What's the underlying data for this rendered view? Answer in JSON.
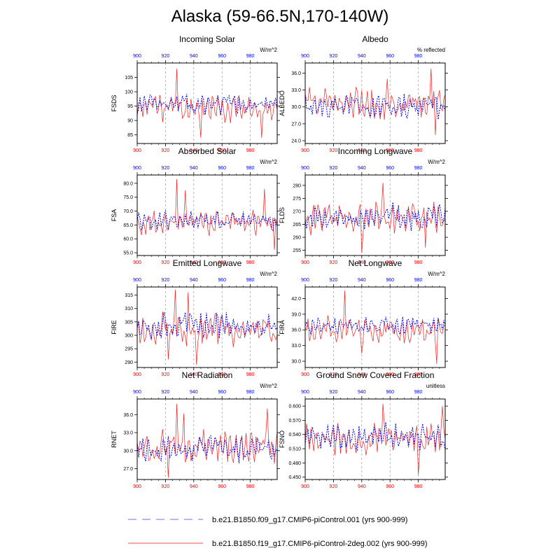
{
  "title": "Alaska (59-66.5N,170-140W)",
  "colors": {
    "run1": "#0000ee",
    "run2": "#ee2222",
    "top_ticks": "#0000ee",
    "bottom_ticks": "#ee0000",
    "dash_guides": "#999999"
  },
  "x_ticks": [
    "900",
    "920",
    "940",
    "960",
    "980"
  ],
  "x_tick_values": [
    900,
    920,
    940,
    960,
    980
  ],
  "xlim": [
    900,
    999
  ],
  "legend": [
    {
      "label": "b.e21.B1850.f09_g17.CMIP6-piControl.001 (yrs 900-999)",
      "color": "#8c8cf0",
      "style": "dashed"
    },
    {
      "label": "b.e21.B1850.f19_g17.CMIP6-piControl-2deg.002 (yrs 900-999)",
      "color": "#f07070",
      "style": "solid"
    }
  ],
  "chart_data": [
    {
      "type": "line",
      "title": "Incoming Solar",
      "ylabel": "FSDS",
      "units": "W/m^2",
      "ylim": [
        82,
        110
      ],
      "yticks": [
        85,
        90,
        95,
        100,
        105
      ],
      "ytick_labels": [
        "85",
        "90",
        "95",
        "100",
        "105"
      ],
      "mean": [
        95.5,
        94.0
      ],
      "amp": [
        3.0,
        4.0
      ],
      "seed": [
        11,
        12
      ],
      "spikes": [
        [
          28,
          108
        ],
        [
          45,
          84
        ],
        [
          88,
          84
        ]
      ]
    },
    {
      "type": "line",
      "title": "Albedo",
      "ylabel": "ALBEDO",
      "units": "% reflected",
      "ylim": [
        23.5,
        37.8
      ],
      "yticks": [
        24.0,
        27.0,
        30.0,
        33.0,
        36.0
      ],
      "ytick_labels": [
        "24.0",
        "27.0",
        "30.0",
        "33.0",
        "36.0"
      ],
      "mean": [
        30.0,
        30.5
      ],
      "amp": [
        2.0,
        2.4
      ],
      "seed": [
        21,
        22
      ],
      "spikes": [
        [
          58,
          35.0
        ],
        [
          89,
          36.8
        ],
        [
          92,
          25.0
        ]
      ]
    },
    {
      "type": "line",
      "title": "Absorbed Solar",
      "ylabel": "FSA",
      "units": "W/m^2",
      "ylim": [
        54,
        83
      ],
      "yticks": [
        55.0,
        60.0,
        65.0,
        70.0,
        75.0,
        80.0
      ],
      "ytick_labels": [
        "55.0",
        "60.0",
        "65.0",
        "70.0",
        "75.0",
        "80.0"
      ],
      "mean": [
        66.5,
        65.5
      ],
      "amp": [
        3.0,
        3.8
      ],
      "seed": [
        31,
        32
      ],
      "spikes": [
        [
          28,
          81.5
        ],
        [
          34,
          77.5
        ],
        [
          90,
          78.0
        ],
        [
          97,
          56.0
        ]
      ]
    },
    {
      "type": "line",
      "title": "Incoming Longwave",
      "ylabel": "FLDS",
      "units": "W/m^2",
      "ylim": [
        253,
        284
      ],
      "yticks": [
        255,
        260,
        265,
        270,
        275,
        280
      ],
      "ytick_labels": [
        "255",
        "260",
        "265",
        "270",
        "275",
        "280"
      ],
      "mean": [
        268.0,
        267.5
      ],
      "amp": [
        4.5,
        5.5
      ],
      "seed": [
        41,
        42
      ],
      "spikes": [
        [
          55,
          281
        ],
        [
          40,
          254
        ],
        [
          85,
          256
        ]
      ]
    },
    {
      "type": "line",
      "title": "Emitted Longwave",
      "ylabel": "FIRE",
      "units": "W/m^2",
      "ylim": [
        288,
        318
      ],
      "yticks": [
        290,
        295,
        300,
        305,
        310,
        315
      ],
      "ytick_labels": [
        "290",
        "295",
        "300",
        "305",
        "310",
        "315"
      ],
      "mean": [
        304.0,
        302.5
      ],
      "amp": [
        4.5,
        5.5
      ],
      "seed": [
        51,
        52
      ],
      "spikes": [
        [
          22,
          291
        ],
        [
          27,
          317
        ],
        [
          42,
          289
        ],
        [
          36,
          316
        ]
      ]
    },
    {
      "type": "line",
      "title": "Net Longwave",
      "ylabel": "FIRA",
      "units": "W/m^2",
      "ylim": [
        28.8,
        44.2
      ],
      "yticks": [
        30.0,
        33.0,
        36.0,
        39.0,
        42.0
      ],
      "ytick_labels": [
        "30.0",
        "33.0",
        "36.0",
        "39.0",
        "42.0"
      ],
      "mean": [
        36.8,
        35.8
      ],
      "amp": [
        1.6,
        2.4
      ],
      "seed": [
        61,
        62
      ],
      "spikes": [
        [
          28,
          43.5
        ],
        [
          93,
          29.5
        ],
        [
          40,
          31.5
        ]
      ]
    },
    {
      "type": "line",
      "title": "Net Radiation",
      "ylabel": "RNET",
      "units": "W/m^2",
      "ylim": [
        25.2,
        38.6
      ],
      "yticks": [
        27.0,
        30.0,
        33.0,
        36.0
      ],
      "ytick_labels": [
        "27.0",
        "30.0",
        "33.0",
        "36.0"
      ],
      "mean": [
        30.2,
        30.6
      ],
      "amp": [
        2.0,
        2.4
      ],
      "seed": [
        71,
        72
      ],
      "spikes": [
        [
          28,
          37.8
        ],
        [
          22,
          25.5
        ],
        [
          33,
          36.2
        ],
        [
          92,
          37.0
        ]
      ]
    },
    {
      "type": "line",
      "title": "Ground Snow Covered Fraction",
      "ylabel": "FSNO",
      "units": "unitless",
      "ylim": [
        0.445,
        0.615
      ],
      "yticks": [
        0.45,
        0.48,
        0.51,
        0.54,
        0.57,
        0.6
      ],
      "ytick_labels": [
        "0.450",
        "0.480",
        "0.510",
        "0.540",
        "0.570",
        "0.600"
      ],
      "mean": [
        0.535,
        0.53
      ],
      "amp": [
        0.025,
        0.03
      ],
      "seed": [
        81,
        82
      ],
      "spikes": [
        [
          55,
          0.605
        ],
        [
          80,
          0.455
        ],
        [
          97,
          0.6
        ]
      ]
    }
  ]
}
